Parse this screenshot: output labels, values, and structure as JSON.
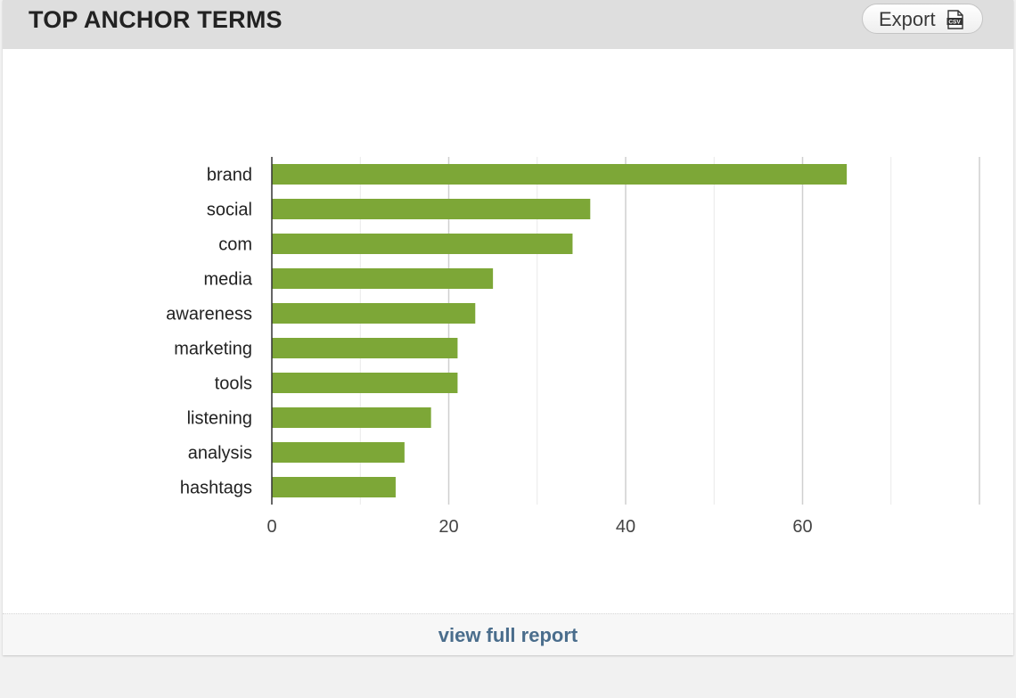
{
  "header": {
    "title": "TOP ANCHOR TERMS",
    "export_label": "Export",
    "export_icon": "csv-file-icon",
    "export_icon_text": "CSV"
  },
  "footer": {
    "link_label": "view full report"
  },
  "chart_data": {
    "type": "bar",
    "orientation": "horizontal",
    "categories": [
      "brand",
      "social",
      "com",
      "media",
      "awareness",
      "marketing",
      "tools",
      "listening",
      "analysis",
      "hashtags"
    ],
    "values": [
      65,
      36,
      34,
      25,
      23,
      21,
      21,
      18,
      15,
      14
    ],
    "xlim": [
      0,
      80
    ],
    "x_ticks": [
      0,
      20,
      40,
      60
    ],
    "grid": true,
    "legend": "none",
    "bar_color": "#7da737",
    "title": "",
    "xlabel": "",
    "ylabel": ""
  }
}
